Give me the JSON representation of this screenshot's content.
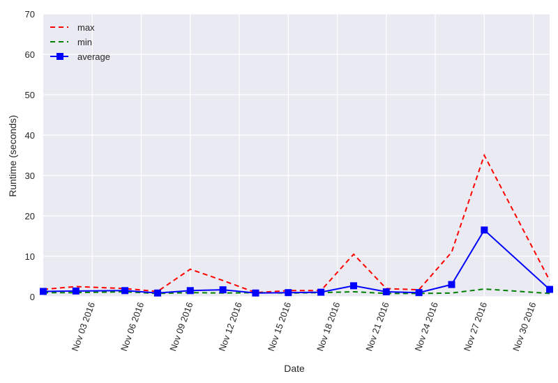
{
  "chart_data": {
    "type": "line",
    "xlabel": "Date",
    "ylabel": "Runtime (seconds)",
    "ylim": [
      0,
      70
    ],
    "yticks": [
      0,
      10,
      20,
      30,
      40,
      50,
      60,
      70
    ],
    "xlim": [
      "Oct 31 2016",
      "Dec 01 2016"
    ],
    "xtick_labels": [
      "Nov 03 2016",
      "Nov 06 2016",
      "Nov 09 2016",
      "Nov 12 2016",
      "Nov 15 2016",
      "Nov 18 2016",
      "Nov 21 2016",
      "Nov 24 2016",
      "Nov 27 2016",
      "Nov 30 2016"
    ],
    "grid": true,
    "legend_position": "top-left",
    "x": [
      "Oct 31 2016",
      "Nov 02 2016",
      "Nov 05 2016",
      "Nov 07 2016",
      "Nov 09 2016",
      "Nov 11 2016",
      "Nov 13 2016",
      "Nov 15 2016",
      "Nov 17 2016",
      "Nov 19 2016",
      "Nov 21 2016",
      "Nov 23 2016",
      "Nov 25 2016",
      "Nov 27 2016",
      "Dec 01 2016"
    ],
    "series": [
      {
        "name": "max",
        "color": "#ff0000",
        "style": "dashed",
        "marker": "none",
        "values": [
          1.8,
          2.5,
          2.0,
          1.3,
          6.8,
          4.0,
          1.0,
          1.5,
          1.5,
          10.5,
          2.0,
          1.7,
          11.0,
          35.0,
          4.0
        ]
      },
      {
        "name": "min",
        "color": "#008000",
        "style": "dashed",
        "marker": "none",
        "values": [
          1.0,
          1.0,
          1.2,
          0.8,
          1.0,
          0.9,
          1.0,
          0.9,
          1.0,
          1.2,
          0.8,
          0.8,
          0.9,
          1.9,
          0.8
        ]
      },
      {
        "name": "average",
        "color": "#0000ff",
        "style": "solid",
        "marker": "square",
        "values": [
          1.3,
          1.4,
          1.5,
          0.9,
          1.5,
          1.7,
          0.9,
          1.0,
          1.1,
          2.7,
          1.2,
          1.0,
          3.0,
          16.5,
          1.8
        ]
      }
    ]
  }
}
